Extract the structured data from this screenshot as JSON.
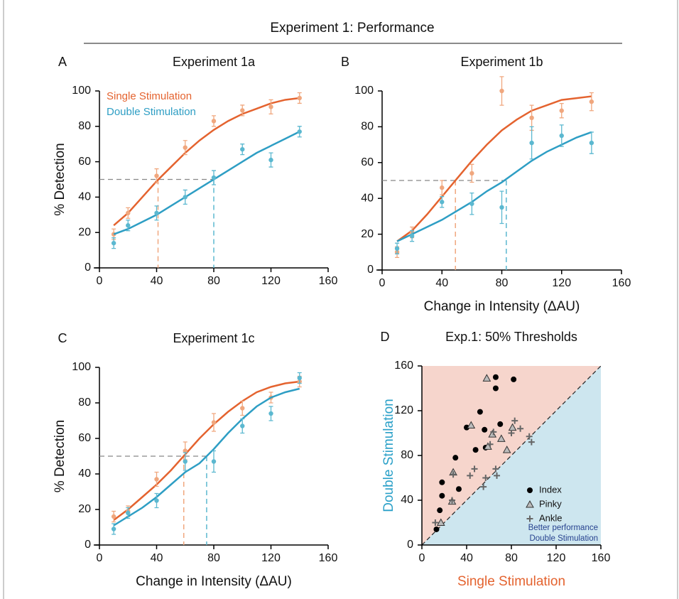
{
  "header": {
    "title": "Experiment 1: Performance"
  },
  "chart_data": [
    {
      "type": "line",
      "panel": "A",
      "title": "Experiment 1a",
      "ylabel": "% Detection",
      "x": [
        10,
        20,
        40,
        60,
        80,
        100,
        120,
        140
      ],
      "fit_x": [
        10,
        20,
        30,
        40,
        50,
        60,
        70,
        80,
        90,
        100,
        110,
        120,
        130,
        140
      ],
      "threshold_level": 50,
      "series": [
        {
          "name": "Single Stimulation",
          "color": "#e4632f",
          "point_color": "#f0a77e",
          "values": [
            19,
            31,
            52,
            68,
            83,
            89,
            91,
            96
          ],
          "errors": [
            3,
            3,
            4,
            4,
            3,
            3,
            4,
            3
          ],
          "fit": [
            24,
            31,
            40,
            49,
            57,
            65,
            72,
            78,
            83,
            87,
            90,
            93,
            95,
            96
          ],
          "threshold": 41
        },
        {
          "name": "Double Stimulation",
          "color": "#2e9ec4",
          "point_color": "#5bb8d0",
          "values": [
            14,
            24,
            31,
            40,
            51,
            67,
            61,
            77
          ],
          "errors": [
            3,
            3,
            4,
            4,
            4,
            3,
            4,
            3
          ],
          "fit": [
            19,
            22,
            26,
            30,
            35,
            40,
            45,
            50,
            55,
            60,
            65,
            69,
            73,
            77
          ],
          "threshold": 80
        }
      ],
      "xlim": [
        0,
        160
      ],
      "ylim": [
        0,
        100
      ],
      "xticks": [
        0,
        40,
        80,
        120,
        160
      ],
      "yticks": [
        0,
        20,
        40,
        60,
        80,
        100
      ],
      "legend": true
    },
    {
      "type": "line",
      "panel": "B",
      "title": "Experiment 1b",
      "xlabel": "Change in Intensity (ΔAU)",
      "x": [
        10,
        20,
        40,
        60,
        80,
        100,
        120,
        140
      ],
      "fit_x": [
        10,
        20,
        30,
        40,
        50,
        60,
        70,
        80,
        90,
        100,
        110,
        120,
        130,
        140
      ],
      "threshold_level": 50,
      "series": [
        {
          "color": "#e4632f",
          "point_color": "#f0a77e",
          "values": [
            10,
            21,
            46,
            54,
            100,
            85,
            89,
            94
          ],
          "errors": [
            3,
            3,
            4,
            5,
            8,
            7,
            4,
            5
          ],
          "fit": [
            16,
            22,
            31,
            41,
            51,
            61,
            70,
            78,
            84,
            89,
            92,
            95,
            96,
            97
          ],
          "threshold": 49
        },
        {
          "color": "#2e9ec4",
          "point_color": "#5bb8d0",
          "values": [
            12,
            19,
            38,
            37,
            35,
            71,
            75,
            71
          ],
          "errors": [
            3,
            3,
            3,
            6,
            9,
            9,
            6,
            6
          ],
          "fit": [
            16,
            20,
            24,
            28,
            33,
            38,
            44,
            49,
            55,
            61,
            66,
            70,
            74,
            77
          ],
          "threshold": 83
        }
      ],
      "xlim": [
        0,
        160
      ],
      "ylim": [
        0,
        100
      ],
      "xticks": [
        0,
        40,
        80,
        120,
        160
      ],
      "yticks": [
        0,
        20,
        40,
        60,
        80,
        100
      ],
      "legend": false
    },
    {
      "type": "line",
      "panel": "C",
      "title": "Experiment 1c",
      "ylabel": "% Detection",
      "xlabel": "Change in Intensity (ΔAU)",
      "x": [
        10,
        20,
        40,
        60,
        80,
        100,
        120,
        140
      ],
      "fit_x": [
        10,
        20,
        30,
        40,
        50,
        60,
        70,
        80,
        90,
        100,
        110,
        120,
        130,
        140
      ],
      "threshold_level": 50,
      "series": [
        {
          "color": "#e4632f",
          "point_color": "#f0a77e",
          "values": [
            16,
            19,
            37,
            53,
            69,
            77,
            83,
            92
          ],
          "errors": [
            3,
            3,
            4,
            5,
            5,
            4,
            3,
            3
          ],
          "fit": [
            14,
            20,
            27,
            34,
            42,
            51,
            60,
            68,
            75,
            81,
            86,
            89,
            91,
            92
          ],
          "threshold": 59
        },
        {
          "color": "#2e9ec4",
          "point_color": "#5bb8d0",
          "values": [
            9,
            18,
            25,
            47,
            47,
            67,
            74,
            94
          ],
          "errors": [
            3,
            3,
            4,
            5,
            6,
            4,
            4,
            3
          ],
          "fit": [
            11,
            16,
            21,
            27,
            34,
            41,
            46,
            54,
            63,
            71,
            78,
            83,
            86,
            88
          ],
          "threshold": 75
        }
      ],
      "xlim": [
        0,
        160
      ],
      "ylim": [
        0,
        100
      ],
      "xticks": [
        0,
        40,
        80,
        120,
        160
      ],
      "yticks": [
        0,
        20,
        40,
        60,
        80,
        100
      ],
      "legend": false
    },
    {
      "type": "scatter",
      "panel": "D",
      "title": "Exp.1: 50% Thresholds",
      "xlabel": "Single Stimulation",
      "xlabel_color": "#e4632f",
      "ylabel": "Double Stimulation",
      "ylabel_color": "#2aa0c8",
      "upper_region_color": "#f6d5cc",
      "lower_region_color": "#cde6ef",
      "annotation": [
        "Better performance",
        "Double Stimulation"
      ],
      "annotation_color": "#27428f",
      "series": [
        {
          "name": "Index",
          "marker": "circle",
          "color": "#000000",
          "x": [
            13,
            16,
            18,
            18,
            33,
            30,
            40,
            48,
            52,
            57,
            66,
            66,
            70,
            82,
            56
          ],
          "values": [
            14,
            31,
            44,
            56,
            50,
            78,
            105,
            85,
            119,
            87,
            140,
            150,
            108,
            148,
            103
          ]
        },
        {
          "name": "Pinky",
          "marker": "triangle",
          "color": "#bbbbbb",
          "x": [
            17,
            27,
            28,
            44,
            58,
            59,
            63,
            71,
            76,
            81
          ],
          "values": [
            20,
            39,
            65,
            107,
            149,
            88,
            99,
            95,
            85,
            105
          ]
        },
        {
          "name": "Ankle",
          "marker": "plus",
          "color": "#666666",
          "x": [
            12,
            27,
            28,
            43,
            47,
            55,
            57,
            61,
            64,
            66,
            67,
            80,
            83,
            88,
            96,
            98
          ],
          "values": [
            20,
            40,
            63,
            62,
            68,
            52,
            60,
            90,
            101,
            68,
            62,
            100,
            111,
            104,
            97,
            92
          ]
        }
      ],
      "xlim": [
        0,
        160
      ],
      "ylim": [
        0,
        160
      ],
      "xticks": [
        0,
        40,
        80,
        120,
        160
      ],
      "yticks": [
        0,
        40,
        80,
        120,
        160
      ],
      "legend": true
    }
  ]
}
